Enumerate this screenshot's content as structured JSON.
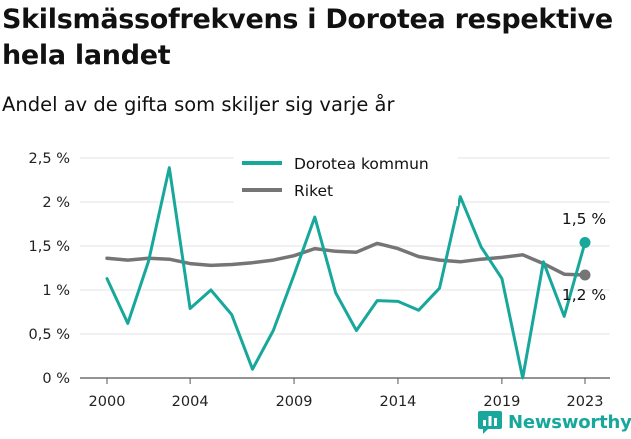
{
  "header": {
    "title": "Skilsmässofrekvens i Dorotea respektive hela landet",
    "subtitle": "Andel av de gifta som skiljer sig varje år"
  },
  "brand": {
    "name": "Newsworthy",
    "icon": "newsworthy-logo-icon",
    "color": "#17a89b"
  },
  "chart_data": {
    "type": "line",
    "x": [
      2000,
      2001,
      2002,
      2003,
      2004,
      2005,
      2006,
      2007,
      2008,
      2009,
      2010,
      2011,
      2012,
      2013,
      2014,
      2015,
      2016,
      2017,
      2018,
      2019,
      2020,
      2021,
      2022,
      2023
    ],
    "series": [
      {
        "name": "Dorotea kommun",
        "color": "#17a89b",
        "values": [
          1.13,
          0.62,
          1.33,
          2.39,
          0.79,
          1.0,
          0.72,
          0.1,
          0.54,
          1.17,
          1.83,
          0.97,
          0.54,
          0.88,
          0.87,
          0.77,
          1.02,
          2.06,
          1.49,
          1.13,
          0.0,
          1.32,
          0.7,
          1.54
        ],
        "end_label": "1,5 %"
      },
      {
        "name": "Riket",
        "color": "#757575",
        "values": [
          1.36,
          1.34,
          1.36,
          1.35,
          1.3,
          1.28,
          1.29,
          1.31,
          1.34,
          1.39,
          1.47,
          1.44,
          1.43,
          1.53,
          1.47,
          1.38,
          1.34,
          1.32,
          1.35,
          1.37,
          1.4,
          1.3,
          1.18,
          1.17
        ],
        "end_label": "1,2 %"
      }
    ],
    "ylim": [
      0,
      2.5
    ],
    "yticks": [
      0,
      0.5,
      1,
      1.5,
      2,
      2.5
    ],
    "ytick_labels": [
      "0 %",
      "0,5 %",
      "1 %",
      "1,5 %",
      "2 %",
      "2,5 %"
    ],
    "xticks": [
      2000,
      2004,
      2009,
      2014,
      2019,
      2023
    ],
    "xtick_labels": [
      "2000",
      "2004",
      "2009",
      "2014",
      "2019",
      "2023"
    ],
    "grid": "horizontal",
    "legend": "top-center"
  }
}
